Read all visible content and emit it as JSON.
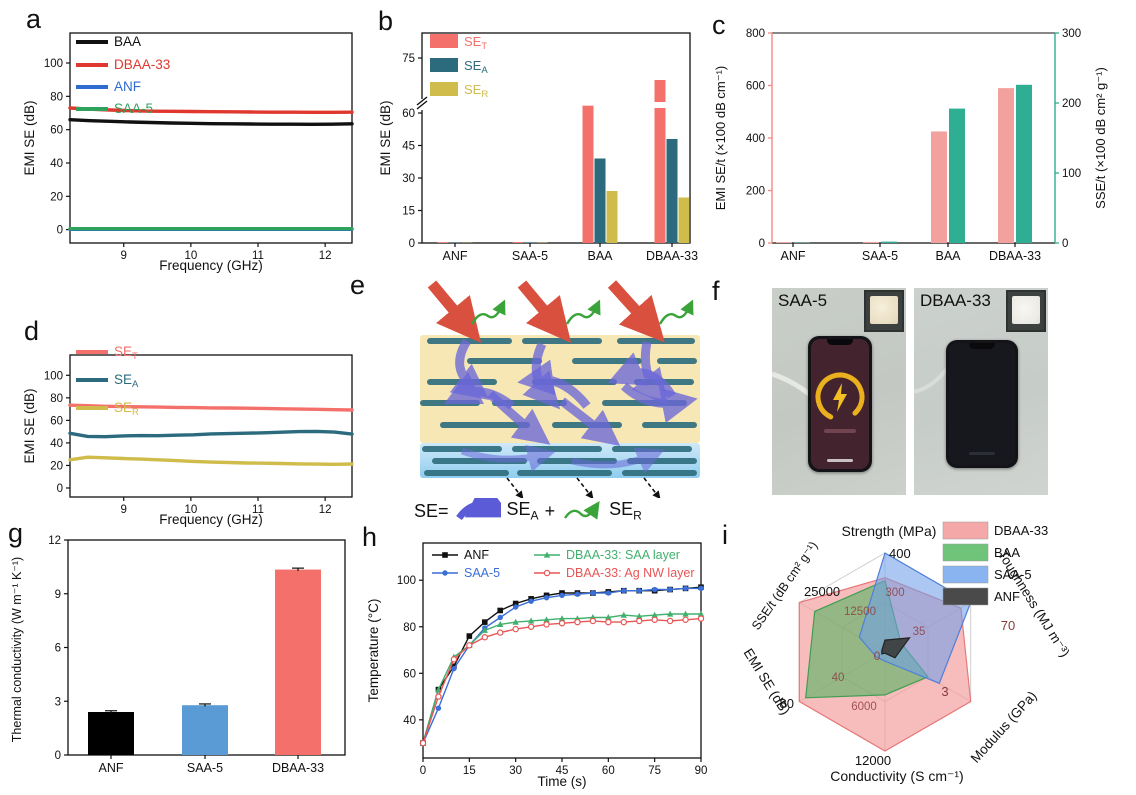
{
  "colors": {
    "black": "#111111",
    "red": "#e0382e",
    "blue": "#2f6bd0",
    "green": "#2fa35c",
    "salmon": "#f4716b",
    "teal": "#2b6b7d",
    "dark_yellow": "#cfbc4b",
    "pink_bar": "#f2a19e",
    "seagreen_bar": "#2fae93",
    "bar_blue": "#5b9bd5",
    "h_blue": "#3a6fd8",
    "h_green": "#41b06e",
    "h_red": "#e85555"
  },
  "panels": {
    "a": {
      "label": "a"
    },
    "b": {
      "label": "b"
    },
    "c": {
      "label": "c"
    },
    "d": {
      "label": "d"
    },
    "e": {
      "label": "e",
      "equation": {
        "lhs": "SE=",
        "abs_main": "SE",
        "abs_sub": "A",
        "plus": "+",
        "ref_main": "SE",
        "ref_sub": "R"
      }
    },
    "f": {
      "label": "f",
      "left_photo_label": "SAA-5",
      "right_photo_label": "DBAA-33"
    },
    "g": {
      "label": "g"
    },
    "h": {
      "label": "h"
    },
    "i": {
      "label": "i"
    }
  },
  "chart_data": [
    {
      "panel": "a",
      "type": "line",
      "x_label": "Frequency (GHz)",
      "y_label": "EMI SE (dB)",
      "x_range": [
        8.2,
        12.4
      ],
      "x_ticks": [
        9,
        10,
        11,
        12
      ],
      "y_range": [
        -8,
        118
      ],
      "y_ticks": [
        0,
        20,
        40,
        60,
        80,
        100
      ],
      "series": [
        {
          "name": "BAA",
          "color": "#111111",
          "y": [
            66,
            65.4,
            65,
            64.6,
            64.3,
            64,
            63.8,
            63.6,
            63.5,
            63.4,
            63.3,
            63.3,
            63.2,
            63.3,
            63.5
          ]
        },
        {
          "name": "DBAA-33",
          "color": "#e0382e",
          "y": [
            73,
            72.3,
            71.8,
            71.4,
            71.1,
            71,
            70.9,
            70.8,
            70.7,
            70.6,
            70.5,
            70.5,
            70.4,
            70.4,
            70.5
          ]
        },
        {
          "name": "ANF",
          "color": "#2f6bd0",
          "y": [
            0.2,
            0.2,
            0.2,
            0.2,
            0.2,
            0.2,
            0.2,
            0.2,
            0.2,
            0.2,
            0.2,
            0.2,
            0.2,
            0.2,
            0.2
          ]
        },
        {
          "name": "SAA-5",
          "color": "#2fa35c",
          "y": [
            0.6,
            0.6,
            0.6,
            0.6,
            0.6,
            0.6,
            0.6,
            0.6,
            0.6,
            0.6,
            0.6,
            0.6,
            0.6,
            0.6,
            0.6
          ]
        }
      ]
    },
    {
      "panel": "b",
      "type": "bar-break",
      "y_label": "EMI SE (dB)",
      "categories": [
        "ANF",
        "SAA-5",
        "BAA",
        "DBAA-33"
      ],
      "y_ticks": [
        0,
        15,
        30,
        45,
        60
      ],
      "y_break_tick": 75,
      "series": [
        {
          "name_main": "SE",
          "name_sub": "T",
          "color": "#f4716b",
          "values": [
            0.3,
            0.4,
            62,
            69
          ]
        },
        {
          "name_main": "SE",
          "name_sub": "A",
          "color": "#2b6b7d",
          "values": [
            0.2,
            0.25,
            39,
            48
          ]
        },
        {
          "name_main": "SE",
          "name_sub": "R",
          "color": "#cfbc4b",
          "values": [
            0.1,
            0.15,
            24,
            21
          ]
        }
      ]
    },
    {
      "panel": "c",
      "type": "bar-dual",
      "categories": [
        "ANF",
        "SAA-5",
        "BAA",
        "DBAA-33"
      ],
      "left_axis": {
        "label": "EMI SE/t (×100 dB cm⁻¹)",
        "ticks": [
          0,
          200,
          400,
          600,
          800
        ],
        "max": 800,
        "color": "#f08a85"
      },
      "right_axis": {
        "label": "SSE/t (×100 dB cm² g⁻¹)",
        "ticks": [
          0,
          100,
          200,
          300
        ],
        "max": 300,
        "color": "#2fae93"
      },
      "series": [
        {
          "name": "EMI SE/t",
          "axis": "left",
          "color": "#f2a19e",
          "values": [
            3,
            4,
            425,
            590
          ]
        },
        {
          "name": "SSE/t",
          "axis": "right",
          "color": "#2fae93",
          "values": [
            0.5,
            2,
            192,
            226
          ]
        }
      ]
    },
    {
      "panel": "d",
      "type": "line",
      "x_label": "Frequency (GHz)",
      "y_label": "EMI SE (dB)",
      "x_range": [
        8.2,
        12.4
      ],
      "x_ticks": [
        9,
        10,
        11,
        12
      ],
      "y_range": [
        -8,
        118
      ],
      "y_ticks": [
        0,
        20,
        40,
        60,
        80,
        100
      ],
      "series": [
        {
          "name_main": "SE",
          "name_sub": "T",
          "color": "#f4716b",
          "y": [
            73.5,
            73,
            72.5,
            72.2,
            72,
            71.8,
            71.5,
            71.3,
            71.1,
            71,
            70.8,
            70.6,
            70.3,
            70,
            69.8,
            69.5,
            69.2
          ]
        },
        {
          "name_main": "SE",
          "name_sub": "A",
          "color": "#2b6b7d",
          "y": [
            48.5,
            45.8,
            45.5,
            46.2,
            46.5,
            46.4,
            46.8,
            47.2,
            48,
            48.3,
            48.6,
            49,
            49.5,
            50,
            50.2,
            49.6,
            47.8
          ]
        },
        {
          "name_main": "SE",
          "name_sub": "R",
          "color": "#cfbc4b",
          "y": [
            25,
            27.3,
            26.8,
            26.2,
            25.6,
            25,
            24.3,
            23.6,
            23,
            22.6,
            22.2,
            22,
            21.7,
            21.4,
            21.2,
            21,
            21.3
          ]
        }
      ]
    },
    {
      "panel": "g",
      "type": "bar",
      "y_label": "Thermal conductivity (W m⁻¹ K⁻¹)",
      "categories": [
        "ANF",
        "SAA-5",
        "DBAA-33"
      ],
      "y_ticks": [
        0,
        3,
        6,
        9,
        12
      ],
      "y_max": 12,
      "bars": [
        {
          "name": "ANF",
          "color": "#000000",
          "value": 2.4,
          "err": 0.07
        },
        {
          "name": "SAA-5",
          "color": "#5b9bd5",
          "value": 2.78,
          "err": 0.07
        },
        {
          "name": "DBAA-33",
          "color": "#f4716b",
          "value": 10.35,
          "err": 0.08
        }
      ]
    },
    {
      "panel": "h",
      "type": "line",
      "x_label": "Time (s)",
      "y_label": "Temperature (°C)",
      "x": [
        0,
        5,
        10,
        15,
        20,
        25,
        30,
        35,
        40,
        45,
        50,
        55,
        60,
        65,
        70,
        75,
        80,
        85,
        90
      ],
      "x_range": [
        0,
        90
      ],
      "x_ticks": [
        0,
        15,
        30,
        45,
        60,
        75,
        90
      ],
      "y_range": [
        23.6,
        116
      ],
      "y_ticks": [
        40,
        60,
        80,
        100
      ],
      "series": [
        {
          "name": "ANF",
          "color": "#111111",
          "marker": "square",
          "y": [
            30,
            53,
            63,
            76,
            82,
            87,
            90,
            92,
            93.5,
            94.5,
            94.5,
            94.5,
            95,
            95.5,
            95.5,
            95.5,
            96,
            96.5,
            97
          ]
        },
        {
          "name": "SAA-5",
          "color": "#3a6fd8",
          "marker": "circle",
          "y": [
            30,
            45,
            62,
            72,
            79.5,
            84,
            88.5,
            91,
            92.5,
            93.5,
            94,
            94.5,
            94.5,
            95.5,
            95.5,
            96,
            96,
            96.5,
            96.5
          ]
        },
        {
          "name": "DBAA-33: SAA layer",
          "color": "#41b06e",
          "marker": "triangle",
          "y": [
            30,
            53,
            67,
            72,
            78.5,
            81,
            82,
            82.5,
            83,
            83.5,
            83.5,
            84,
            84,
            85,
            84.5,
            85,
            85.5,
            85.5,
            85.5
          ]
        },
        {
          "name": "DBAA-33: Ag NW layer",
          "color": "#e85555",
          "marker": "circle-open",
          "y": [
            30,
            50,
            66,
            72,
            75.5,
            77.5,
            79,
            80,
            81,
            81.5,
            82,
            82.5,
            82,
            82,
            82.5,
            83,
            82.5,
            83,
            83.5
          ]
        }
      ]
    },
    {
      "panel": "i",
      "type": "radar",
      "axes": [
        {
          "label": "Strength (MPa)",
          "max": 400,
          "outer_tick": "400",
          "inner_tick": "300",
          "outer_color": "#111111"
        },
        {
          "label": "Toughness (MJ m⁻³)",
          "max": 70,
          "outer_tick": "70",
          "inner_tick": "35",
          "outer_color": "#8a3a3a"
        },
        {
          "label": "Modulus (GPa)",
          "max": 3,
          "outer_tick": "3",
          "inner_tick": "",
          "outer_color": "#8a3a3a"
        },
        {
          "label": "Conductivity (S cm⁻¹)",
          "max": 12000,
          "outer_tick": "12000",
          "inner_tick": "6000",
          "outer_color": "#111111"
        },
        {
          "label": "EMI SE (dB)",
          "max": 80,
          "outer_tick": "80",
          "inner_tick": "40",
          "outer_color": "#111111"
        },
        {
          "label": "SSE/t (dB cm² g⁻¹)",
          "max": 25000,
          "outer_tick": "25000",
          "inner_tick": "12500",
          "outer_color": "#111111"
        }
      ],
      "center_tick": "0",
      "series": [
        {
          "name": "DBAA-33",
          "fill": "#f28c8c",
          "stroke": "#e87979",
          "swatch": "#f5a8a8",
          "values": [
            300,
            62,
            3,
            12000,
            80,
            25000
          ]
        },
        {
          "name": "BAA",
          "fill": "#4db45e",
          "stroke": "#3f9e52",
          "swatch": "#6fc47a",
          "values": [
            288,
            13,
            1.5,
            5200,
            74,
            20500
          ]
        },
        {
          "name": "SAA-5",
          "fill": "#6f9ee8",
          "stroke": "#4f7fd9",
          "swatch": "#8ab4f0",
          "values": [
            400,
            70,
            1.9,
            1100,
            8,
            7500
          ]
        },
        {
          "name": "ANF",
          "fill": "#3a3a3a",
          "stroke": "#222222",
          "swatch": "#4a4a4a",
          "values": [
            48,
            20,
            0.35,
            150,
            3,
            900
          ]
        }
      ]
    }
  ]
}
